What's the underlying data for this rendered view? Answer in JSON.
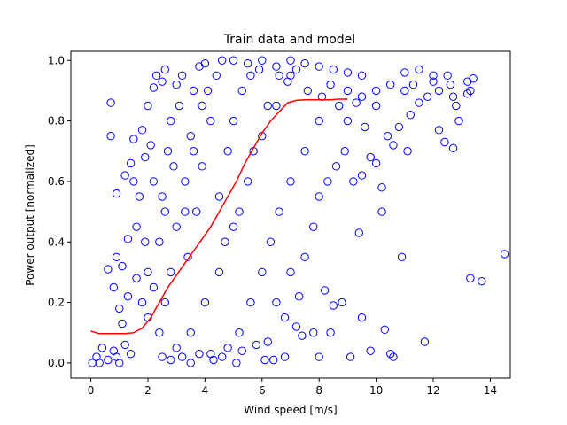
{
  "chart_data": {
    "type": "scatter",
    "title": "Train data and model",
    "xlabel": "Wind speed [m/s]",
    "ylabel": "Power output [normalized]",
    "xlim": [
      -0.7,
      14.7
    ],
    "ylim": [
      -0.05,
      1.03
    ],
    "xticks": [
      0,
      2,
      4,
      6,
      8,
      10,
      12,
      14
    ],
    "yticks": [
      0.0,
      0.2,
      0.4,
      0.6,
      0.8,
      1.0
    ],
    "grid": false,
    "colors": {
      "scatter": "#0000ff",
      "model": "#ff0000"
    },
    "series": [
      {
        "type": "scatter",
        "marker": "open-circle",
        "points": [
          [
            0.05,
            0.0
          ],
          [
            0.2,
            0.02
          ],
          [
            0.4,
            0.05
          ],
          [
            0.6,
            0.01
          ],
          [
            0.8,
            0.04
          ],
          [
            1.0,
            0.0
          ],
          [
            1.2,
            0.06
          ],
          [
            0.3,
            0.0
          ],
          [
            0.9,
            0.02
          ],
          [
            1.4,
            0.03
          ],
          [
            0.6,
            0.31
          ],
          [
            0.7,
            0.75
          ],
          [
            0.7,
            0.86
          ],
          [
            0.9,
            0.56
          ],
          [
            0.8,
            0.25
          ],
          [
            0.9,
            0.35
          ],
          [
            1.1,
            0.13
          ],
          [
            1.1,
            0.32
          ],
          [
            1.2,
            0.62
          ],
          [
            1.3,
            0.41
          ],
          [
            1.4,
            0.66
          ],
          [
            1.5,
            0.6
          ],
          [
            1.5,
            0.74
          ],
          [
            1.6,
            0.45
          ],
          [
            1.7,
            0.55
          ],
          [
            1.8,
            0.77
          ],
          [
            1.9,
            0.4
          ],
          [
            1.9,
            0.68
          ],
          [
            2.0,
            0.85
          ],
          [
            2.1,
            0.72
          ],
          [
            1.8,
            0.2
          ],
          [
            2.0,
            0.3
          ],
          [
            2.2,
            0.91
          ],
          [
            2.3,
            0.95
          ],
          [
            2.5,
            0.93
          ],
          [
            2.6,
            0.97
          ],
          [
            2.2,
            0.6
          ],
          [
            1.6,
            0.28
          ],
          [
            1.3,
            0.22
          ],
          [
            1.0,
            0.18
          ],
          [
            2.4,
            0.4
          ],
          [
            2.5,
            0.55
          ],
          [
            2.7,
            0.7
          ],
          [
            2.8,
            0.8
          ],
          [
            3.0,
            0.92
          ],
          [
            3.2,
            0.95
          ],
          [
            2.6,
            0.2
          ],
          [
            2.8,
            0.3
          ],
          [
            3.0,
            0.45
          ],
          [
            3.3,
            0.6
          ],
          [
            3.5,
            0.75
          ],
          [
            3.6,
            0.9
          ],
          [
            3.8,
            0.98
          ],
          [
            4.0,
            0.99
          ],
          [
            3.4,
            0.35
          ],
          [
            3.7,
            0.5
          ],
          [
            3.9,
            0.65
          ],
          [
            4.2,
            0.8
          ],
          [
            4.4,
            0.95
          ],
          [
            4.6,
            1.0
          ],
          [
            2.5,
            0.02
          ],
          [
            3.0,
            0.05
          ],
          [
            3.5,
            0.1
          ],
          [
            4.0,
            0.2
          ],
          [
            4.5,
            0.3
          ],
          [
            5.0,
            0.45
          ],
          [
            5.5,
            0.6
          ],
          [
            6.0,
            0.75
          ],
          [
            6.5,
            0.85
          ],
          [
            7.0,
            0.95
          ],
          [
            4.2,
            0.03
          ],
          [
            4.8,
            0.05
          ],
          [
            5.2,
            0.1
          ],
          [
            5.6,
            0.2
          ],
          [
            6.0,
            0.3
          ],
          [
            6.3,
            0.4
          ],
          [
            6.6,
            0.5
          ],
          [
            7.0,
            0.6
          ],
          [
            7.5,
            0.7
          ],
          [
            8.0,
            0.8
          ],
          [
            5.0,
            1.0
          ],
          [
            5.5,
            0.99
          ],
          [
            6.0,
            1.0
          ],
          [
            6.5,
            0.98
          ],
          [
            7.0,
            1.0
          ],
          [
            7.5,
            0.99
          ],
          [
            8.0,
            0.98
          ],
          [
            8.5,
            0.97
          ],
          [
            9.0,
            0.96
          ],
          [
            9.5,
            0.95
          ],
          [
            6.5,
            0.2
          ],
          [
            6.8,
            0.15
          ],
          [
            7.0,
            0.3
          ],
          [
            7.3,
            0.22
          ],
          [
            7.5,
            0.35
          ],
          [
            7.8,
            0.45
          ],
          [
            8.0,
            0.55
          ],
          [
            8.3,
            0.6
          ],
          [
            8.6,
            0.65
          ],
          [
            8.9,
            0.7
          ],
          [
            6.1,
            0.01
          ],
          [
            6.4,
            0.01
          ],
          [
            6.8,
            0.02
          ],
          [
            7.2,
            0.12
          ],
          [
            7.4,
            0.09
          ],
          [
            7.8,
            0.1
          ],
          [
            8.0,
            0.02
          ],
          [
            8.2,
            0.24
          ],
          [
            8.5,
            0.19
          ],
          [
            8.8,
            0.2
          ],
          [
            8.4,
            0.1
          ],
          [
            9.1,
            0.02
          ],
          [
            9.4,
            0.43
          ],
          [
            9.5,
            0.15
          ],
          [
            9.8,
            0.04
          ],
          [
            10.2,
            0.5
          ],
          [
            10.3,
            0.11
          ],
          [
            10.5,
            0.03
          ],
          [
            10.6,
            0.02
          ],
          [
            10.9,
            0.35
          ],
          [
            9.2,
            0.6
          ],
          [
            9.5,
            0.62
          ],
          [
            9.8,
            0.68
          ],
          [
            10.0,
            0.66
          ],
          [
            10.2,
            0.58
          ],
          [
            10.4,
            0.75
          ],
          [
            10.6,
            0.72
          ],
          [
            10.8,
            0.78
          ],
          [
            11.2,
            0.82
          ],
          [
            11.1,
            0.7
          ],
          [
            11.0,
            0.9
          ],
          [
            11.3,
            0.92
          ],
          [
            11.5,
            0.86
          ],
          [
            11.8,
            0.88
          ],
          [
            12.0,
            0.95
          ],
          [
            12.2,
            0.9
          ],
          [
            12.5,
            0.95
          ],
          [
            12.6,
            0.92
          ],
          [
            12.7,
            0.88
          ],
          [
            12.8,
            0.85
          ],
          [
            12.2,
            0.77
          ],
          [
            12.4,
            0.73
          ],
          [
            12.7,
            0.71
          ],
          [
            12.9,
            0.8
          ],
          [
            13.2,
            0.93
          ],
          [
            13.3,
            0.9
          ],
          [
            13.4,
            0.94
          ],
          [
            13.2,
            0.89
          ],
          [
            11.7,
            0.07
          ],
          [
            13.3,
            0.28
          ],
          [
            13.7,
            0.27
          ],
          [
            14.5,
            0.36
          ],
          [
            10.0,
            0.9
          ],
          [
            10.5,
            0.92
          ],
          [
            11.0,
            0.96
          ],
          [
            11.5,
            0.97
          ],
          [
            12.0,
            0.93
          ],
          [
            9.0,
            0.9
          ],
          [
            9.5,
            0.88
          ],
          [
            10.0,
            0.85
          ],
          [
            3.2,
            0.02
          ],
          [
            3.8,
            0.03
          ],
          [
            4.3,
            0.01
          ],
          [
            5.3,
            0.04
          ],
          [
            5.8,
            0.06
          ],
          [
            6.2,
            0.07
          ],
          [
            2.8,
            0.01
          ],
          [
            3.5,
            0.0
          ],
          [
            4.6,
            0.02
          ],
          [
            5.1,
            0.0
          ],
          [
            2.0,
            0.15
          ],
          [
            2.2,
            0.25
          ],
          [
            2.4,
            0.1
          ],
          [
            2.6,
            0.5
          ],
          [
            2.9,
            0.65
          ],
          [
            3.1,
            0.85
          ],
          [
            3.3,
            0.5
          ],
          [
            3.6,
            0.7
          ],
          [
            3.9,
            0.85
          ],
          [
            4.1,
            0.9
          ],
          [
            4.5,
            0.55
          ],
          [
            4.8,
            0.7
          ],
          [
            5.0,
            0.8
          ],
          [
            5.3,
            0.9
          ],
          [
            5.6,
            0.95
          ],
          [
            5.9,
            0.97
          ],
          [
            4.7,
            0.4
          ],
          [
            5.2,
            0.5
          ],
          [
            5.7,
            0.7
          ],
          [
            6.2,
            0.85
          ],
          [
            6.6,
            0.95
          ],
          [
            6.9,
            0.93
          ],
          [
            7.2,
            0.97
          ],
          [
            7.6,
            0.9
          ],
          [
            8.1,
            0.88
          ],
          [
            8.4,
            0.92
          ],
          [
            8.7,
            0.85
          ],
          [
            9.0,
            0.8
          ],
          [
            9.3,
            0.86
          ],
          [
            9.6,
            0.78
          ]
        ]
      },
      {
        "type": "line",
        "points": [
          [
            0.0,
            0.105
          ],
          [
            0.3,
            0.097
          ],
          [
            0.6,
            0.097
          ],
          [
            0.9,
            0.097
          ],
          [
            1.2,
            0.097
          ],
          [
            1.5,
            0.1
          ],
          [
            1.8,
            0.115
          ],
          [
            2.1,
            0.15
          ],
          [
            2.4,
            0.2
          ],
          [
            2.7,
            0.25
          ],
          [
            3.0,
            0.29
          ],
          [
            3.3,
            0.33
          ],
          [
            3.6,
            0.37
          ],
          [
            3.9,
            0.41
          ],
          [
            4.2,
            0.45
          ],
          [
            4.5,
            0.5
          ],
          [
            4.8,
            0.55
          ],
          [
            5.1,
            0.6
          ],
          [
            5.4,
            0.66
          ],
          [
            5.7,
            0.71
          ],
          [
            6.0,
            0.76
          ],
          [
            6.3,
            0.8
          ],
          [
            6.6,
            0.83
          ],
          [
            6.9,
            0.86
          ],
          [
            7.2,
            0.868
          ],
          [
            7.5,
            0.87
          ],
          [
            7.8,
            0.87
          ],
          [
            8.1,
            0.87
          ],
          [
            8.4,
            0.87
          ],
          [
            8.7,
            0.872
          ],
          [
            9.0,
            0.872
          ]
        ]
      }
    ]
  }
}
